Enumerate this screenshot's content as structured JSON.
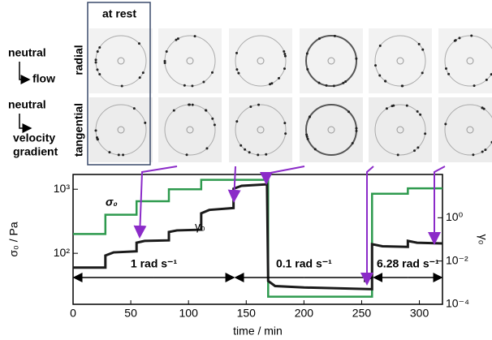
{
  "panel": {
    "at_rest": "at rest",
    "row1_neutral": "neutral",
    "row1_flow": "flow",
    "row1_label": "radial",
    "row2_neutral": "neutral",
    "row2_velocity": "velocity",
    "row2_gradient": "gradient",
    "row2_label": "tangential"
  },
  "chart_data": {
    "type": "line",
    "xlabel": "time / min",
    "ylabel": "σ₀ / Pa",
    "y2label": "γ₀",
    "xlim": [
      0,
      320
    ],
    "xticks": [
      0,
      50,
      100,
      150,
      200,
      250,
      300
    ],
    "ylim": [
      16,
      1700
    ],
    "log_y": true,
    "yticks": [
      {
        "value": 100,
        "label": "10²"
      },
      {
        "value": 1000,
        "label": "10³"
      }
    ],
    "y2lim": [
      0.0001,
      100
    ],
    "log_y2": true,
    "y2ticks": [
      {
        "value": 0.0001,
        "label": "10⁻⁴"
      },
      {
        "value": 0.01,
        "label": "10⁻²"
      },
      {
        "value": 1,
        "label": "10⁰"
      }
    ],
    "series": [
      {
        "name": "σ₀",
        "color": "#2e9a4e",
        "axis": "y",
        "x": [
          0,
          28,
          28,
          55,
          55,
          83,
          83,
          111,
          111,
          169,
          169,
          259,
          259,
          290,
          290,
          320
        ],
        "values": [
          200,
          200,
          400,
          400,
          650,
          650,
          1000,
          1000,
          1400,
          1400,
          21,
          21,
          850,
          850,
          1030,
          1030
        ]
      },
      {
        "name": "γ₀",
        "color": "#1a1a1a",
        "axis": "y2",
        "x": [
          0,
          28,
          28,
          35,
          55,
          55,
          62,
          83,
          83,
          90,
          111,
          111,
          118,
          139,
          139,
          146,
          168,
          169,
          175,
          200,
          259,
          259,
          268,
          290,
          290,
          298,
          320
        ],
        "values": [
          0.005,
          0.005,
          0.018,
          0.025,
          0.028,
          0.07,
          0.085,
          0.09,
          0.22,
          0.26,
          0.28,
          1.6,
          2.3,
          2.8,
          22,
          30,
          35,
          0.0012,
          0.0007,
          0.0006,
          0.0005,
          0.06,
          0.048,
          0.045,
          0.085,
          0.07,
          0.065
        ]
      }
    ],
    "annotations": [
      "1 rad s⁻¹",
      "0.1 rad s⁻¹",
      "6.28 rad s⁻¹"
    ]
  }
}
